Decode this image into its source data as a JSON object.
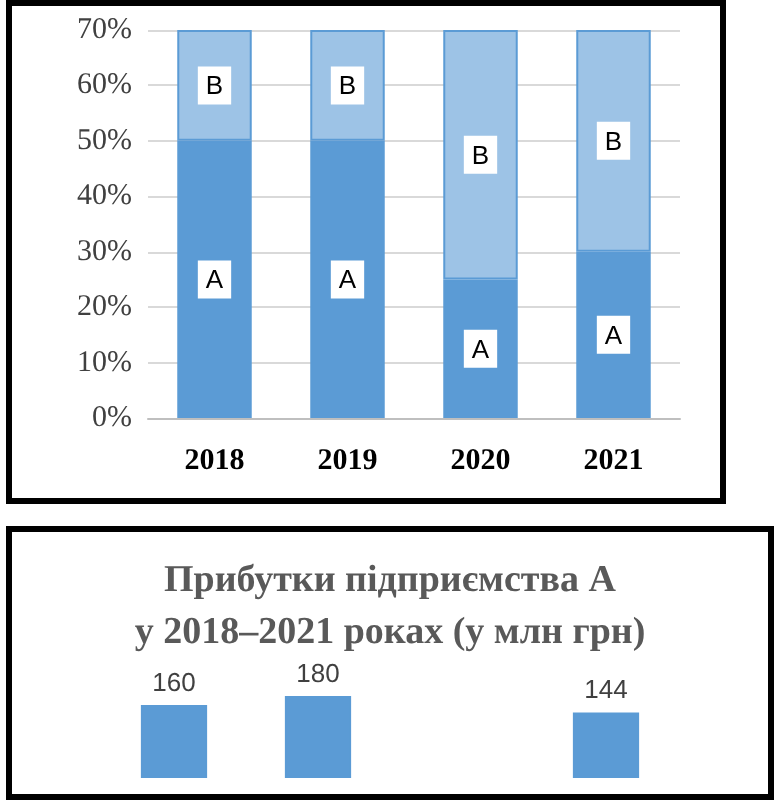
{
  "chart_data": [
    {
      "type": "bar",
      "stacked": true,
      "categories": [
        "2018",
        "2019",
        "2020",
        "2021"
      ],
      "series": [
        {
          "name": "A",
          "color": "#5b9bd5",
          "values": [
            50,
            50,
            25,
            30
          ]
        },
        {
          "name": "B",
          "color": "#9dc3e6",
          "values": [
            20,
            20,
            45,
            40
          ]
        }
      ],
      "ylim": [
        0,
        70
      ],
      "yticks": [
        {
          "value": 0,
          "label": "0%"
        },
        {
          "value": 10,
          "label": "10%"
        },
        {
          "value": 20,
          "label": "20%"
        },
        {
          "value": 30,
          "label": "30%"
        },
        {
          "value": 40,
          "label": "40%"
        },
        {
          "value": 50,
          "label": "50%"
        },
        {
          "value": 60,
          "label": "60%"
        },
        {
          "value": 70,
          "label": "70%"
        }
      ],
      "grid": "y",
      "legend": false
    },
    {
      "type": "bar",
      "title": "Прибутки підприємства А\nу 2018–2021 роках (у млн грн)",
      "categories": [
        null,
        null,
        null,
        null
      ],
      "values": [
        160,
        180,
        null,
        144
      ],
      "color": "#5b9bd5",
      "data_labels": true,
      "tick_labels": false,
      "grid": false,
      "legend": false
    }
  ]
}
